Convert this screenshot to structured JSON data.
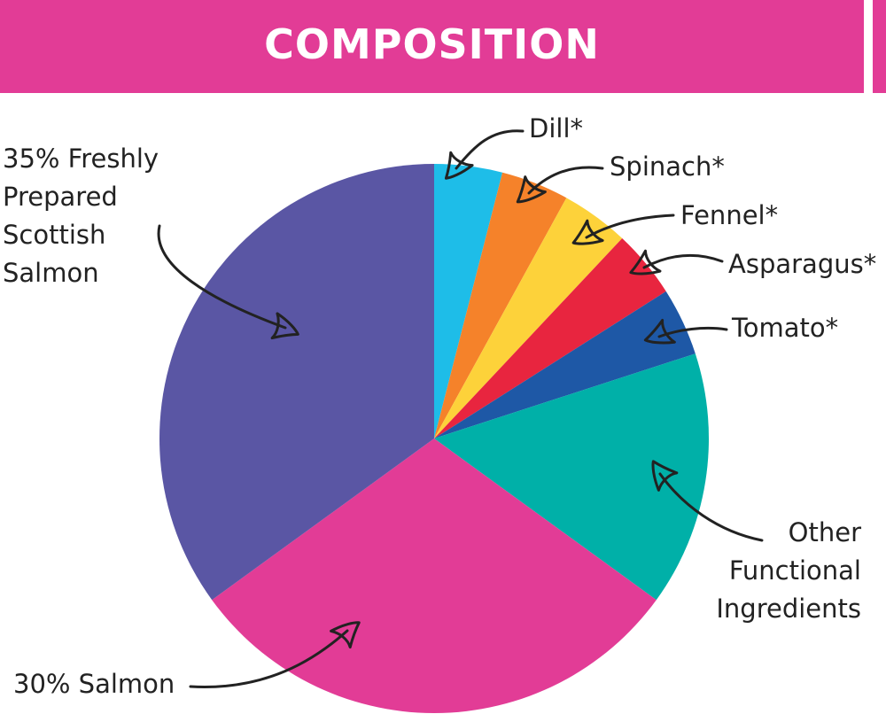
{
  "chart_data": {
    "type": "pie",
    "title": "COMPOSITION",
    "categories": [
      "Dill*",
      "Spinach*",
      "Fennel*",
      "Asparagus*",
      "Tomato*",
      "Other Functional Ingredients",
      "30% Salmon",
      "35% Freshly Prepared Scottish Salmon"
    ],
    "values": [
      4,
      4,
      4,
      4,
      4,
      15,
      30,
      35
    ],
    "colors": [
      "#1ebde8",
      "#f5822a",
      "#fdd23a",
      "#e8253f",
      "#1e58a6",
      "#00b0a8",
      "#e23c96",
      "#5a56a4"
    ]
  }
}
